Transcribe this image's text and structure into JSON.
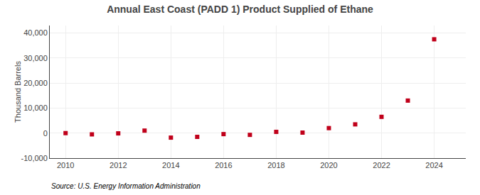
{
  "chart_data": {
    "type": "scatter",
    "title": "Annual East Coast (PADD 1) Product Supplied of Ethane",
    "ylabel": "Thousand Barrels",
    "annotations": [
      "Source: U.S. Energy Information Administration"
    ],
    "x": [
      2010,
      2011,
      2012,
      2013,
      2014,
      2015,
      2016,
      2017,
      2018,
      2019,
      2020,
      2021,
      2022,
      2023,
      2024
    ],
    "values": [
      0,
      -500,
      -100,
      1000,
      -1800,
      -1500,
      -400,
      -700,
      500,
      200,
      2000,
      3500,
      6500,
      13000,
      37500
    ],
    "color": "#c0001a",
    "marker": "square",
    "xlim": [
      2009.4,
      2025.2
    ],
    "xticks": [
      2010,
      2012,
      2014,
      2016,
      2018,
      2020,
      2022,
      2024
    ],
    "ylim": [
      -10000,
      43000
    ],
    "yticks": [
      {
        "value": -10000,
        "label": "-10,000"
      },
      0,
      {
        "value": 10000,
        "label": "10,000"
      },
      {
        "value": 20000,
        "label": "20,000"
      },
      {
        "value": 30000,
        "label": "30,000"
      },
      {
        "value": 40000,
        "label": "40,000"
      }
    ],
    "grid": true
  }
}
